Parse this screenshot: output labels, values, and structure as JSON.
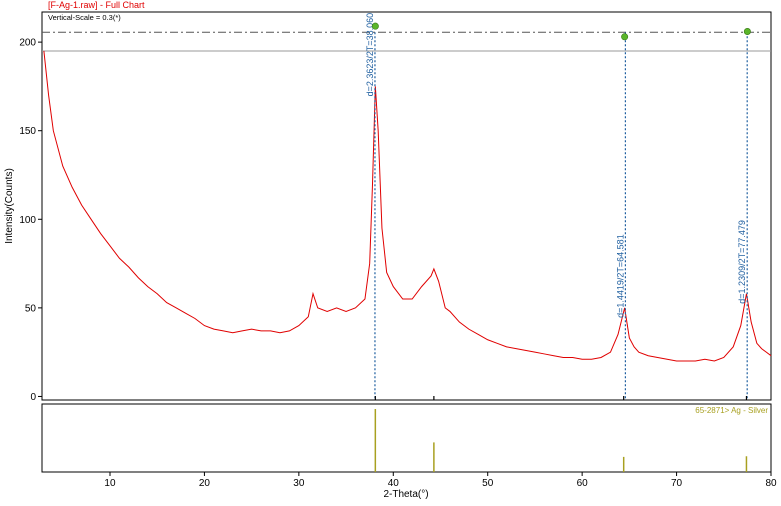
{
  "chart_data": {
    "type": "line",
    "title": "[F-Ag-1.raw] - Full Chart",
    "subtitle": "Vertical-Scale = 0.3(*)",
    "x_label": "2-Theta(°)",
    "y_label": "Intensity(Counts)",
    "xlim": [
      2.8,
      80
    ],
    "ylim": [
      -2,
      217
    ],
    "xticks": [
      10,
      20,
      30,
      40,
      50,
      60,
      70,
      80
    ],
    "yticks": [
      0,
      50,
      100,
      150,
      200
    ],
    "color": "#e00000",
    "x": [
      3,
      3.5,
      4,
      5,
      6,
      7,
      8,
      9,
      10,
      11,
      12,
      13,
      14,
      15,
      16,
      17,
      18,
      19,
      20,
      21,
      22,
      23,
      24,
      25,
      26,
      27,
      28,
      29,
      30,
      31,
      31.5,
      32,
      33,
      34,
      35,
      36,
      37,
      37.5,
      37.8,
      38.1,
      38.4,
      38.8,
      39.3,
      40,
      41,
      42,
      43,
      44,
      44.3,
      44.8,
      45.5,
      46,
      47,
      48,
      49,
      50,
      51,
      52,
      53,
      54,
      55,
      56,
      57,
      58,
      59,
      60,
      61,
      62,
      63,
      63.8,
      64.5,
      65,
      65.5,
      66,
      67,
      68,
      69,
      70,
      71,
      72,
      73,
      74,
      75,
      76,
      76.8,
      77.4,
      77.9,
      78.5,
      79,
      79.5,
      80
    ],
    "values": [
      195,
      170,
      150,
      130,
      118,
      108,
      100,
      92,
      85,
      78,
      73,
      67,
      62,
      58,
      53,
      50,
      47,
      44,
      40,
      38,
      37,
      36,
      37,
      38,
      37,
      37,
      36,
      37,
      40,
      45,
      58,
      50,
      48,
      50,
      48,
      50,
      55,
      75,
      120,
      175,
      150,
      95,
      70,
      62,
      55,
      55,
      62,
      68,
      72,
      65,
      50,
      48,
      42,
      38,
      35,
      32,
      30,
      28,
      27,
      26,
      25,
      24,
      23,
      22,
      22,
      21,
      21,
      22,
      25,
      35,
      50,
      33,
      28,
      25,
      23,
      22,
      21,
      20,
      20,
      20,
      21,
      20,
      22,
      28,
      40,
      58,
      42,
      30,
      27,
      25,
      23
    ],
    "hlines": [
      {
        "value": 205.6,
        "style": "dashdot"
      },
      {
        "value": 195,
        "style": "solid"
      }
    ],
    "markers": [
      {
        "x": 38.1,
        "y": 209
      },
      {
        "x": 64.5,
        "y": 203
      },
      {
        "x": 77.5,
        "y": 206
      }
    ],
    "marker_color": "#5ab52a",
    "peaks": [
      {
        "x": 38.06,
        "label": "d=2.3623/2T=38.060"
      },
      {
        "x": 64.581,
        "label": "d=1.4419/2T=64.581"
      },
      {
        "x": 77.479,
        "label": "d=1.2309/2T=77.479"
      }
    ],
    "peak_color": "#1f5fa0",
    "reference": {
      "label": "65-2871> Ag - Silver",
      "color": "#a8a020",
      "ylim": [
        0,
        108
      ],
      "x": [
        38.1,
        44.3,
        64.4,
        77.4
      ],
      "values": [
        100,
        47,
        24,
        25
      ]
    }
  }
}
